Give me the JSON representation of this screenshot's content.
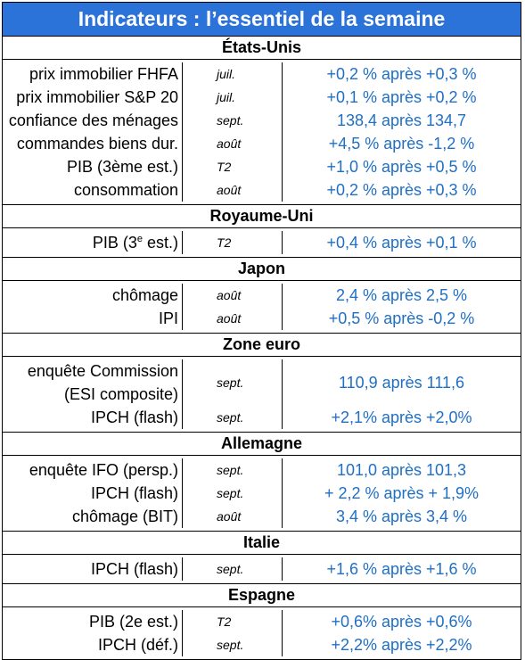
{
  "title": "Indicateurs : l’essentiel de la semaine",
  "sections": [
    {
      "name": "États-Unis",
      "rows": [
        {
          "label": "prix immobilier FHFA",
          "period": "juil.",
          "value": "+0,2 % après +0,3 %"
        },
        {
          "label": "prix immobilier S&P 20",
          "period": "juil.",
          "value": "+0,1 % après +0,2 %"
        },
        {
          "label": "confiance des ménages",
          "period": "sept.",
          "value": "138,4 après 134,7"
        },
        {
          "label": "commandes biens dur.",
          "period": "août",
          "value": "+4,5 % après -1,2 %"
        },
        {
          "label": "PIB (3ème est.)",
          "period": "T2",
          "value": "+1,0 % après +0,5 %"
        },
        {
          "label": "consommation",
          "period": "août",
          "value": "+0,2 % après +0,3 %"
        }
      ]
    },
    {
      "name": "Royaume-Uni",
      "rows": [
        {
          "label_pre": "PIB (3",
          "label_sup": "e",
          "label_post": " est.)",
          "period": "T2",
          "value": "+0,4 % après +0,1 %"
        }
      ]
    },
    {
      "name": "Japon",
      "rows": [
        {
          "label": "chômage",
          "period": "août",
          "value": "2,4 % après 2,5 %"
        },
        {
          "label": "IPI",
          "period": "août",
          "value": "+0,5 % après -0,2 %"
        }
      ]
    },
    {
      "name": "Zone euro",
      "rows": [
        {
          "label_line1": "enquête Commission",
          "label_line2": "(ESI composite)",
          "period": "sept.",
          "value": "110,9 après 111,6"
        },
        {
          "label": "IPCH (flash)",
          "period": "sept.",
          "value": "+2,1% après +2,0%"
        }
      ]
    },
    {
      "name": "Allemagne",
      "rows": [
        {
          "label": "enquête IFO (persp.)",
          "period": "sept.",
          "value": "101,0 après 101,3"
        },
        {
          "label": "IPCH (flash)",
          "period": "sept.",
          "value": "+ 2,2 % après + 1,9%"
        },
        {
          "label": "chômage (BIT)",
          "period": "août",
          "value": "3,4 % après 3,4 %"
        }
      ]
    },
    {
      "name": "Italie",
      "rows": [
        {
          "label": "IPCH (flash)",
          "period": "sept.",
          "value": "+1,6 % après +1,6 %"
        }
      ]
    },
    {
      "name": "Espagne",
      "rows": [
        {
          "label": "PIB (2e est.)",
          "period": "T2",
          "value": "+0,6% après +0,6%"
        },
        {
          "label": "IPCH (déf.)",
          "period": "sept.",
          "value": "+2,2% après +2,2%"
        }
      ]
    }
  ]
}
